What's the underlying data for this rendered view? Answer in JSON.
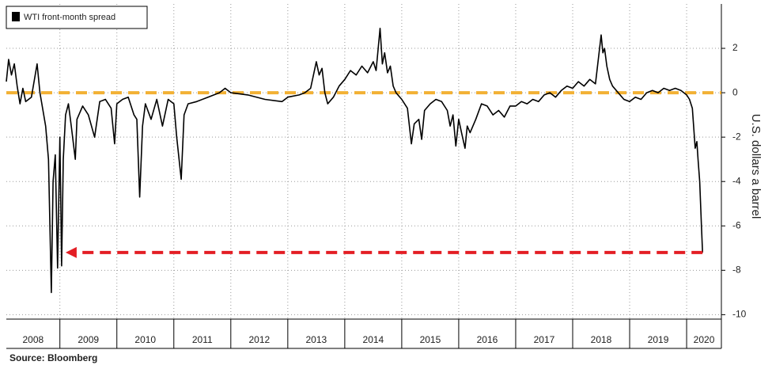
{
  "chart_data": {
    "type": "line",
    "y_axis_label": "U.S. dollars a barrel",
    "source": "Source:  Bloomberg",
    "legend": "top-left",
    "grid": true,
    "ylim": [
      -10.2,
      4
    ],
    "yticks": [
      2,
      0,
      -2,
      -4,
      -6,
      -8,
      -10
    ],
    "xlim": [
      2008.06,
      2020.61
    ],
    "xticks": [
      {
        "value": 2008,
        "label": "2008"
      },
      {
        "value": 2009,
        "label": "2009"
      },
      {
        "value": 2010,
        "label": "2010"
      },
      {
        "value": 2011,
        "label": "2011"
      },
      {
        "value": 2012,
        "label": "2012"
      },
      {
        "value": 2013,
        "label": "2013"
      },
      {
        "value": 2014,
        "label": "2014"
      },
      {
        "value": 2015,
        "label": "2015"
      },
      {
        "value": 2016,
        "label": "2016"
      },
      {
        "value": 2017,
        "label": "2017"
      },
      {
        "value": 2018,
        "label": "2018"
      },
      {
        "value": 2019,
        "label": "2019"
      },
      {
        "value": 2020,
        "label": "2020"
      }
    ],
    "hlines": [
      {
        "value": 0,
        "color": "#f2b134"
      }
    ],
    "arrow": {
      "y": -7.2,
      "x_from": 2020.28,
      "x_to": 2009.1,
      "color": "#e31e24"
    },
    "x": [
      2008.06,
      2008.1,
      2008.15,
      2008.2,
      2008.25,
      2008.3,
      2008.35,
      2008.4,
      2008.5,
      2008.6,
      2008.65,
      2008.75,
      2008.8,
      2008.85,
      2008.88,
      2008.92,
      2008.96,
      2009.0,
      2009.03,
      2009.06,
      2009.1,
      2009.15,
      2009.2,
      2009.27,
      2009.3,
      2009.4,
      2009.5,
      2009.61,
      2009.7,
      2009.8,
      2009.9,
      2009.96,
      2010.0,
      2010.1,
      2010.2,
      2010.3,
      2010.35,
      2010.4,
      2010.45,
      2010.5,
      2010.6,
      2010.7,
      2010.8,
      2010.9,
      2011.0,
      2011.05,
      2011.13,
      2011.18,
      2011.25,
      2011.4,
      2011.6,
      2011.8,
      2011.9,
      2012.0,
      2012.3,
      2012.6,
      2012.9,
      2013.0,
      2013.2,
      2013.3,
      2013.4,
      2013.5,
      2013.55,
      2013.6,
      2013.65,
      2013.7,
      2013.8,
      2013.9,
      2014.0,
      2014.1,
      2014.2,
      2014.3,
      2014.4,
      2014.5,
      2014.55,
      2014.62,
      2014.66,
      2014.7,
      2014.75,
      2014.8,
      2014.85,
      2014.9,
      2015.0,
      2015.1,
      2015.17,
      2015.22,
      2015.3,
      2015.35,
      2015.4,
      2015.5,
      2015.6,
      2015.7,
      2015.8,
      2015.85,
      2015.9,
      2015.95,
      2016.0,
      2016.05,
      2016.11,
      2016.15,
      2016.2,
      2016.3,
      2016.4,
      2016.5,
      2016.6,
      2016.7,
      2016.8,
      2016.9,
      2017.0,
      2017.1,
      2017.2,
      2017.3,
      2017.4,
      2017.5,
      2017.6,
      2017.7,
      2017.8,
      2017.9,
      2018.0,
      2018.1,
      2018.2,
      2018.3,
      2018.4,
      2018.5,
      2018.53,
      2018.56,
      2018.6,
      2018.65,
      2018.7,
      2018.8,
      2018.9,
      2019.0,
      2019.1,
      2019.2,
      2019.3,
      2019.4,
      2019.5,
      2019.6,
      2019.7,
      2019.8,
      2019.9,
      2020.0,
      2020.05,
      2020.1,
      2020.15,
      2020.18,
      2020.2,
      2020.23,
      2020.26,
      2020.28
    ],
    "series": [
      {
        "name": "WTI front-month spread",
        "color": "#000000",
        "values": [
          0.5,
          1.5,
          0.8,
          1.3,
          0.3,
          -0.5,
          0.2,
          -0.4,
          -0.2,
          1.3,
          0,
          -1.5,
          -3,
          -9,
          -4,
          -2.8,
          -7.9,
          -2,
          -7.8,
          -3,
          -1,
          -0.5,
          -1.5,
          -3,
          -1.2,
          -0.6,
          -1,
          -2,
          -0.4,
          -0.3,
          -0.7,
          -2.3,
          -0.5,
          -0.3,
          -0.2,
          -1,
          -1.2,
          -4.7,
          -1.5,
          -0.5,
          -1.2,
          -0.3,
          -1.5,
          -0.3,
          -0.5,
          -2,
          -3.9,
          -1,
          -0.5,
          -0.4,
          -0.2,
          0,
          0.2,
          0,
          -0.1,
          -0.3,
          -0.4,
          -0.2,
          -0.1,
          0,
          0.2,
          1.4,
          0.8,
          1.1,
          0,
          -0.5,
          -0.2,
          0.3,
          0.6,
          1.0,
          0.8,
          1.2,
          0.9,
          1.4,
          1.0,
          2.9,
          1.3,
          1.8,
          0.9,
          1.2,
          0.3,
          0,
          -0.3,
          -0.7,
          -2.3,
          -1.4,
          -1.2,
          -2.1,
          -0.8,
          -0.5,
          -0.3,
          -0.4,
          -0.8,
          -1.5,
          -1,
          -2.4,
          -1.2,
          -1.8,
          -2.5,
          -1.5,
          -1.8,
          -1.2,
          -0.5,
          -0.6,
          -1.0,
          -0.8,
          -1.1,
          -0.6,
          -0.6,
          -0.4,
          -0.5,
          -0.3,
          -0.4,
          -0.1,
          0,
          -0.2,
          0.1,
          0.3,
          0.2,
          0.5,
          0.3,
          0.6,
          0.4,
          2.6,
          1.8,
          2.0,
          1.2,
          0.6,
          0.3,
          0,
          -0.3,
          -0.4,
          -0.2,
          -0.3,
          0,
          0.1,
          0,
          0.2,
          0.1,
          0.2,
          0.1,
          -0.1,
          -0.3,
          -0.7,
          -2.5,
          -2.2,
          -3,
          -4,
          -6,
          -7.2
        ]
      }
    ]
  }
}
